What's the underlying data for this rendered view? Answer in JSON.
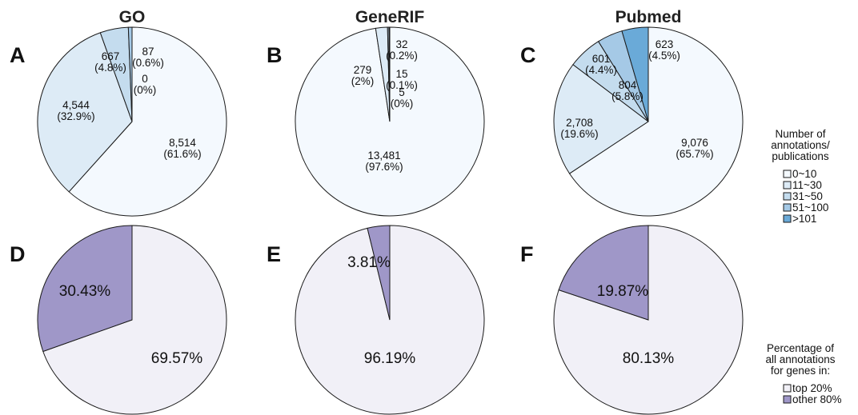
{
  "column_titles": [
    "GO",
    "GeneRIF",
    "Pubmed"
  ],
  "panel_letters": [
    "A",
    "B",
    "C",
    "D",
    "E",
    "F"
  ],
  "legend_top": {
    "title_lines": [
      "Number of",
      "annotations/",
      "publications"
    ],
    "items": [
      {
        "label": "0~10",
        "color": "#f4f9fe"
      },
      {
        "label": "11~30",
        "color": "#ddebf6"
      },
      {
        "label": "31~50",
        "color": "#c4dcee"
      },
      {
        "label": "51~100",
        "color": "#a5c9e6"
      },
      {
        "label": ">101",
        "color": "#6aaad8"
      }
    ]
  },
  "legend_bottom": {
    "title_lines": [
      "Percentage of",
      "all annotations",
      "for genes in:"
    ],
    "items": [
      {
        "label": "top 20%",
        "color": "#f1f0f7"
      },
      {
        "label": "other 80%",
        "color": "#9f97c8"
      }
    ]
  },
  "chart_data": [
    {
      "type": "pie",
      "panel": "A",
      "title": "GO",
      "slices": [
        {
          "category": "0~10",
          "value": 8514,
          "label_lines": [
            "8,514",
            "(61.6%)"
          ],
          "color": "#f4f9fe"
        },
        {
          "category": "11~30",
          "value": 4544,
          "label_lines": [
            "4,544",
            "(32.9%)"
          ],
          "color": "#ddebf6"
        },
        {
          "category": "31~50",
          "value": 667,
          "label_lines": [
            "667",
            "(4.8%)"
          ],
          "color": "#c4dcee"
        },
        {
          "category": "51~100",
          "value": 87,
          "label_lines": [
            "87",
            "(0.6%)"
          ],
          "color": "#a5c9e6"
        },
        {
          "category": ">101",
          "value": 0,
          "label_lines": [
            "0",
            "(0%)"
          ],
          "color": "#6aaad8"
        }
      ]
    },
    {
      "type": "pie",
      "panel": "B",
      "title": "GeneRIF",
      "slices": [
        {
          "category": "0~10",
          "value": 13481,
          "label_lines": [
            "13,481",
            "(97.6%)"
          ],
          "color": "#f4f9fe"
        },
        {
          "category": "11~30",
          "value": 279,
          "label_lines": [
            "279",
            "(2%)"
          ],
          "color": "#ddebf6"
        },
        {
          "category": "31~50",
          "value": 32,
          "label_lines": [
            "32",
            "(0.2%)"
          ],
          "color": "#c4dcee"
        },
        {
          "category": "51~100",
          "value": 15,
          "label_lines": [
            "15",
            "(0.1%)"
          ],
          "color": "#a5c9e6"
        },
        {
          "category": ">101",
          "value": 5,
          "label_lines": [
            "5",
            "(0%)"
          ],
          "color": "#6aaad8"
        }
      ]
    },
    {
      "type": "pie",
      "panel": "C",
      "title": "Pubmed",
      "slices": [
        {
          "category": "0~10",
          "value": 9076,
          "label_lines": [
            "9,076",
            "(65.7%)"
          ],
          "color": "#f4f9fe"
        },
        {
          "category": "11~30",
          "value": 2708,
          "label_lines": [
            "2,708",
            "(19.6%)"
          ],
          "color": "#ddebf6"
        },
        {
          "category": "31~50",
          "value": 804,
          "label_lines": [
            "804",
            "(5.8%)"
          ],
          "color": "#c4dcee"
        },
        {
          "category": "51~100",
          "value": 601,
          "label_lines": [
            "601",
            "(4.4%)"
          ],
          "color": "#a5c9e6"
        },
        {
          "category": ">101",
          "value": 623,
          "label_lines": [
            "623",
            "(4.5%)"
          ],
          "color": "#6aaad8"
        }
      ]
    },
    {
      "type": "pie",
      "panel": "D",
      "title": "",
      "slices": [
        {
          "category": "top 20%",
          "value": 69.57,
          "label_lines": [
            "69.57%"
          ],
          "color": "#f1f0f7"
        },
        {
          "category": "other 80%",
          "value": 30.43,
          "label_lines": [
            "30.43%"
          ],
          "color": "#9f97c8"
        }
      ]
    },
    {
      "type": "pie",
      "panel": "E",
      "title": "",
      "slices": [
        {
          "category": "top 20%",
          "value": 96.19,
          "label_lines": [
            "96.19%"
          ],
          "color": "#f1f0f7"
        },
        {
          "category": "other 80%",
          "value": 3.81,
          "label_lines": [
            "3.81%"
          ],
          "color": "#9f97c8"
        }
      ]
    },
    {
      "type": "pie",
      "panel": "F",
      "title": "",
      "slices": [
        {
          "category": "top 20%",
          "value": 80.13,
          "label_lines": [
            "80.13%"
          ],
          "color": "#f1f0f7"
        },
        {
          "category": "other 80%",
          "value": 19.87,
          "label_lines": [
            "19.87%"
          ],
          "color": "#9f97c8"
        }
      ]
    }
  ]
}
